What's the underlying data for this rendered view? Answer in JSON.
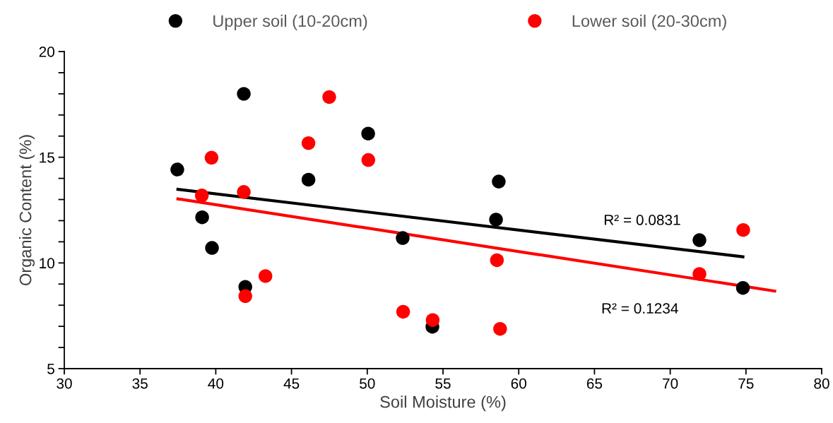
{
  "chart_data": {
    "type": "scatter",
    "xlabel": "Soil Moisture (%)",
    "ylabel": "Organic Content (%)",
    "xlim": [
      30,
      80
    ],
    "ylim": [
      5,
      20
    ],
    "xticks": [
      30,
      35,
      40,
      45,
      50,
      55,
      60,
      65,
      70,
      75,
      80
    ],
    "yticks": [
      5,
      {
        "value": 6,
        "label": null
      },
      {
        "value": 7,
        "label": null
      },
      {
        "value": 8,
        "label": null
      },
      {
        "value": 9,
        "label": null
      },
      10,
      {
        "value": 11,
        "label": null
      },
      {
        "value": 12,
        "label": null
      },
      {
        "value": 13,
        "label": null
      },
      {
        "value": 14,
        "label": null
      },
      15,
      {
        "value": 16,
        "label": null
      },
      {
        "value": 17,
        "label": null
      },
      {
        "value": 18,
        "label": null
      },
      {
        "value": 19,
        "label": null
      },
      20
    ],
    "grid": false,
    "legend": "top",
    "marker": "circle",
    "series": [
      {
        "type": "line",
        "marker": "none",
        "color": "#000000",
        "x": [
          37.5,
          74.8
        ],
        "values": [
          13.48,
          10.29
        ]
      },
      {
        "type": "line",
        "marker": "none",
        "color": "#ff0000",
        "x": [
          37.5,
          76.9
        ],
        "values": [
          13.03,
          8.67
        ]
      },
      {
        "name": "Upper soil (10-20cm)",
        "color": "#000000",
        "x": [
          37.46,
          41.85,
          39.1,
          39.75,
          41.95,
          43.28,
          46.12,
          47.49,
          50.06,
          52.34,
          54.3,
          58.5,
          58.68,
          71.93,
          74.8
        ],
        "values": [
          14.42,
          18.0,
          12.16,
          10.71,
          8.87,
          null,
          13.94,
          null,
          16.12,
          11.18,
          6.98,
          12.05,
          13.85,
          11.08,
          8.82
        ]
      },
      {
        "name": "Lower soil (20-30cm)",
        "color": "#ff0000",
        "x": [
          39.72,
          39.08,
          41.85,
          41.95,
          43.28,
          46.12,
          47.49,
          50.07,
          52.37,
          54.32,
          58.56,
          58.77,
          71.93,
          74.82
        ],
        "values": [
          14.98,
          13.19,
          13.36,
          8.43,
          9.38,
          15.67,
          17.85,
          14.87,
          7.69,
          7.3,
          10.13,
          6.88,
          9.48,
          11.56
        ]
      }
    ],
    "annotations": [
      "R² = 0.0831",
      "R² = 0.1234"
    ]
  }
}
